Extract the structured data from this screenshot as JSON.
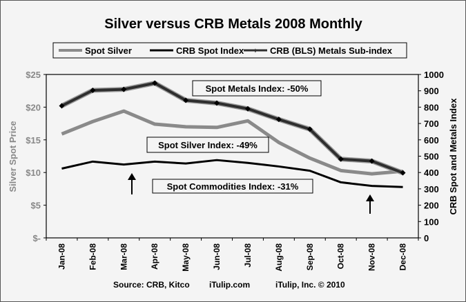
{
  "chart_data": {
    "type": "line",
    "title": "Silver versus CRB Metals 2008 Monthly",
    "categories": [
      "Jan-08",
      "Feb-08",
      "Mar-08",
      "Apr-08",
      "May-08",
      "Jun-08",
      "Jul-08",
      "Aug-08",
      "Sep-08",
      "Oct-08",
      "Nov-08",
      "Dec-08"
    ],
    "series": [
      {
        "name": "Spot Silver",
        "axis": "left",
        "values": [
          15.9,
          17.8,
          19.4,
          17.4,
          17.0,
          16.9,
          17.9,
          14.6,
          12.2,
          10.3,
          9.8,
          10.2
        ],
        "color": "#8a8a8a"
      },
      {
        "name": "CRB Spot Index",
        "axis": "right",
        "values": [
          424,
          467,
          449,
          467,
          455,
          476,
          459,
          437,
          411,
          340,
          318,
          311
        ],
        "color": "#000000"
      },
      {
        "name": "CRB (BLS) Metals Sub-index",
        "axis": "right",
        "values": [
          808,
          903,
          909,
          947,
          842,
          825,
          790,
          725,
          665,
          482,
          470,
          398
        ],
        "color": "#2e2e2e"
      }
    ],
    "ylabel_left": "Silver Spot Price",
    "ylabel_right": "CRB Spot and Metals Index",
    "ylim_left": [
      0,
      25
    ],
    "ylim_right": [
      0,
      1000
    ],
    "yticks_left": [
      "$-",
      "$5",
      "$10",
      "$15",
      "$20",
      "$25"
    ],
    "yticks_right": [
      "0",
      "100",
      "200",
      "300",
      "400",
      "500",
      "600",
      "700",
      "800",
      "900",
      "1000"
    ],
    "grid": false,
    "legend_position": "top",
    "annotations": {
      "metals": "Spot Metals Index: -50%",
      "silver": "Spot Silver Index: -49%",
      "commodities": "Spot Commodities Index: -31%"
    },
    "footer": {
      "source": "Source: CRB, Kitco",
      "site": "iTulip.com",
      "copyright": "iTulip, Inc. © 2010"
    }
  }
}
